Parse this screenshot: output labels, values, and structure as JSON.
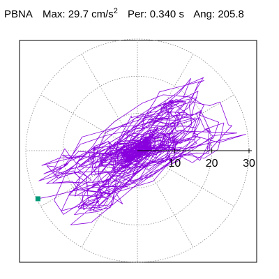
{
  "header": {
    "station": "PBNA",
    "max_label": "Max:",
    "max_value": "29.7 cm/s",
    "max_exp": "2",
    "per_label": "Per:",
    "per_value": "0.340 s",
    "ang_label": "Ang:",
    "ang_value": "205.8"
  },
  "chart_data": {
    "type": "polar-orbit",
    "title": "",
    "radial_ticks": [
      "10",
      "20",
      "30"
    ],
    "radial_max": 30,
    "radial_rings": [
      10,
      20,
      30
    ],
    "spoke_angles_deg": [
      0,
      30,
      60,
      90,
      120,
      150,
      180,
      210,
      240,
      270,
      300,
      330
    ],
    "peak_marker": {
      "radius": 29.7,
      "angle_deg": 205.8
    },
    "grid": true,
    "legend": "none",
    "colors": {
      "trace": "#8800dd",
      "marker": "#009977",
      "grid": "#888888",
      "axis": "#000000"
    }
  }
}
